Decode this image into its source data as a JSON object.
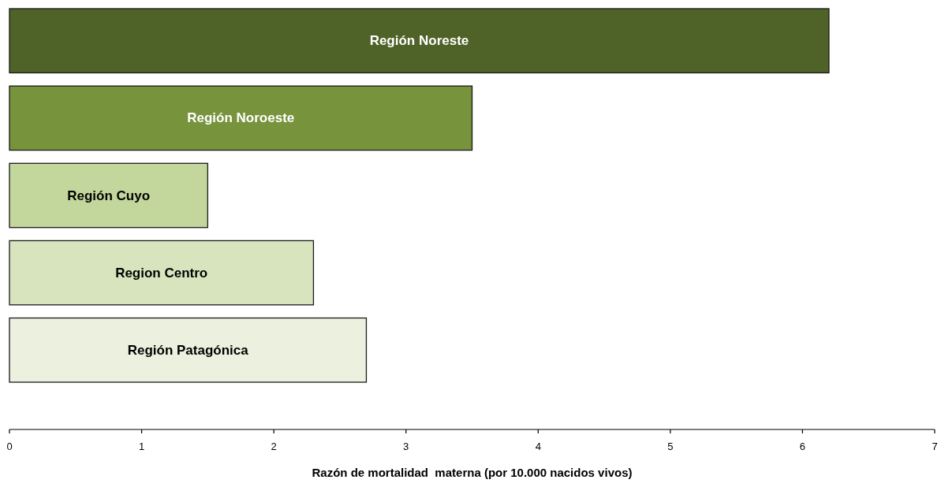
{
  "chart_data": {
    "type": "bar",
    "orientation": "horizontal",
    "categories": [
      "Región Noreste",
      "Región Noroeste",
      "Región Cuyo",
      "Region Centro",
      "Región Patagónica"
    ],
    "values": [
      6.2,
      3.5,
      1.5,
      2.3,
      2.7
    ],
    "colors": [
      "#4f6228",
      "#77933c",
      "#c3d69b",
      "#d7e4bd",
      "#ebf1de"
    ],
    "xlim": [
      0,
      7
    ],
    "xticks": [
      0,
      1,
      2,
      3,
      4,
      5,
      6,
      7
    ],
    "xlabel": "Razón de mortalidad  materna (por 10.000 nacidos vivos)"
  }
}
